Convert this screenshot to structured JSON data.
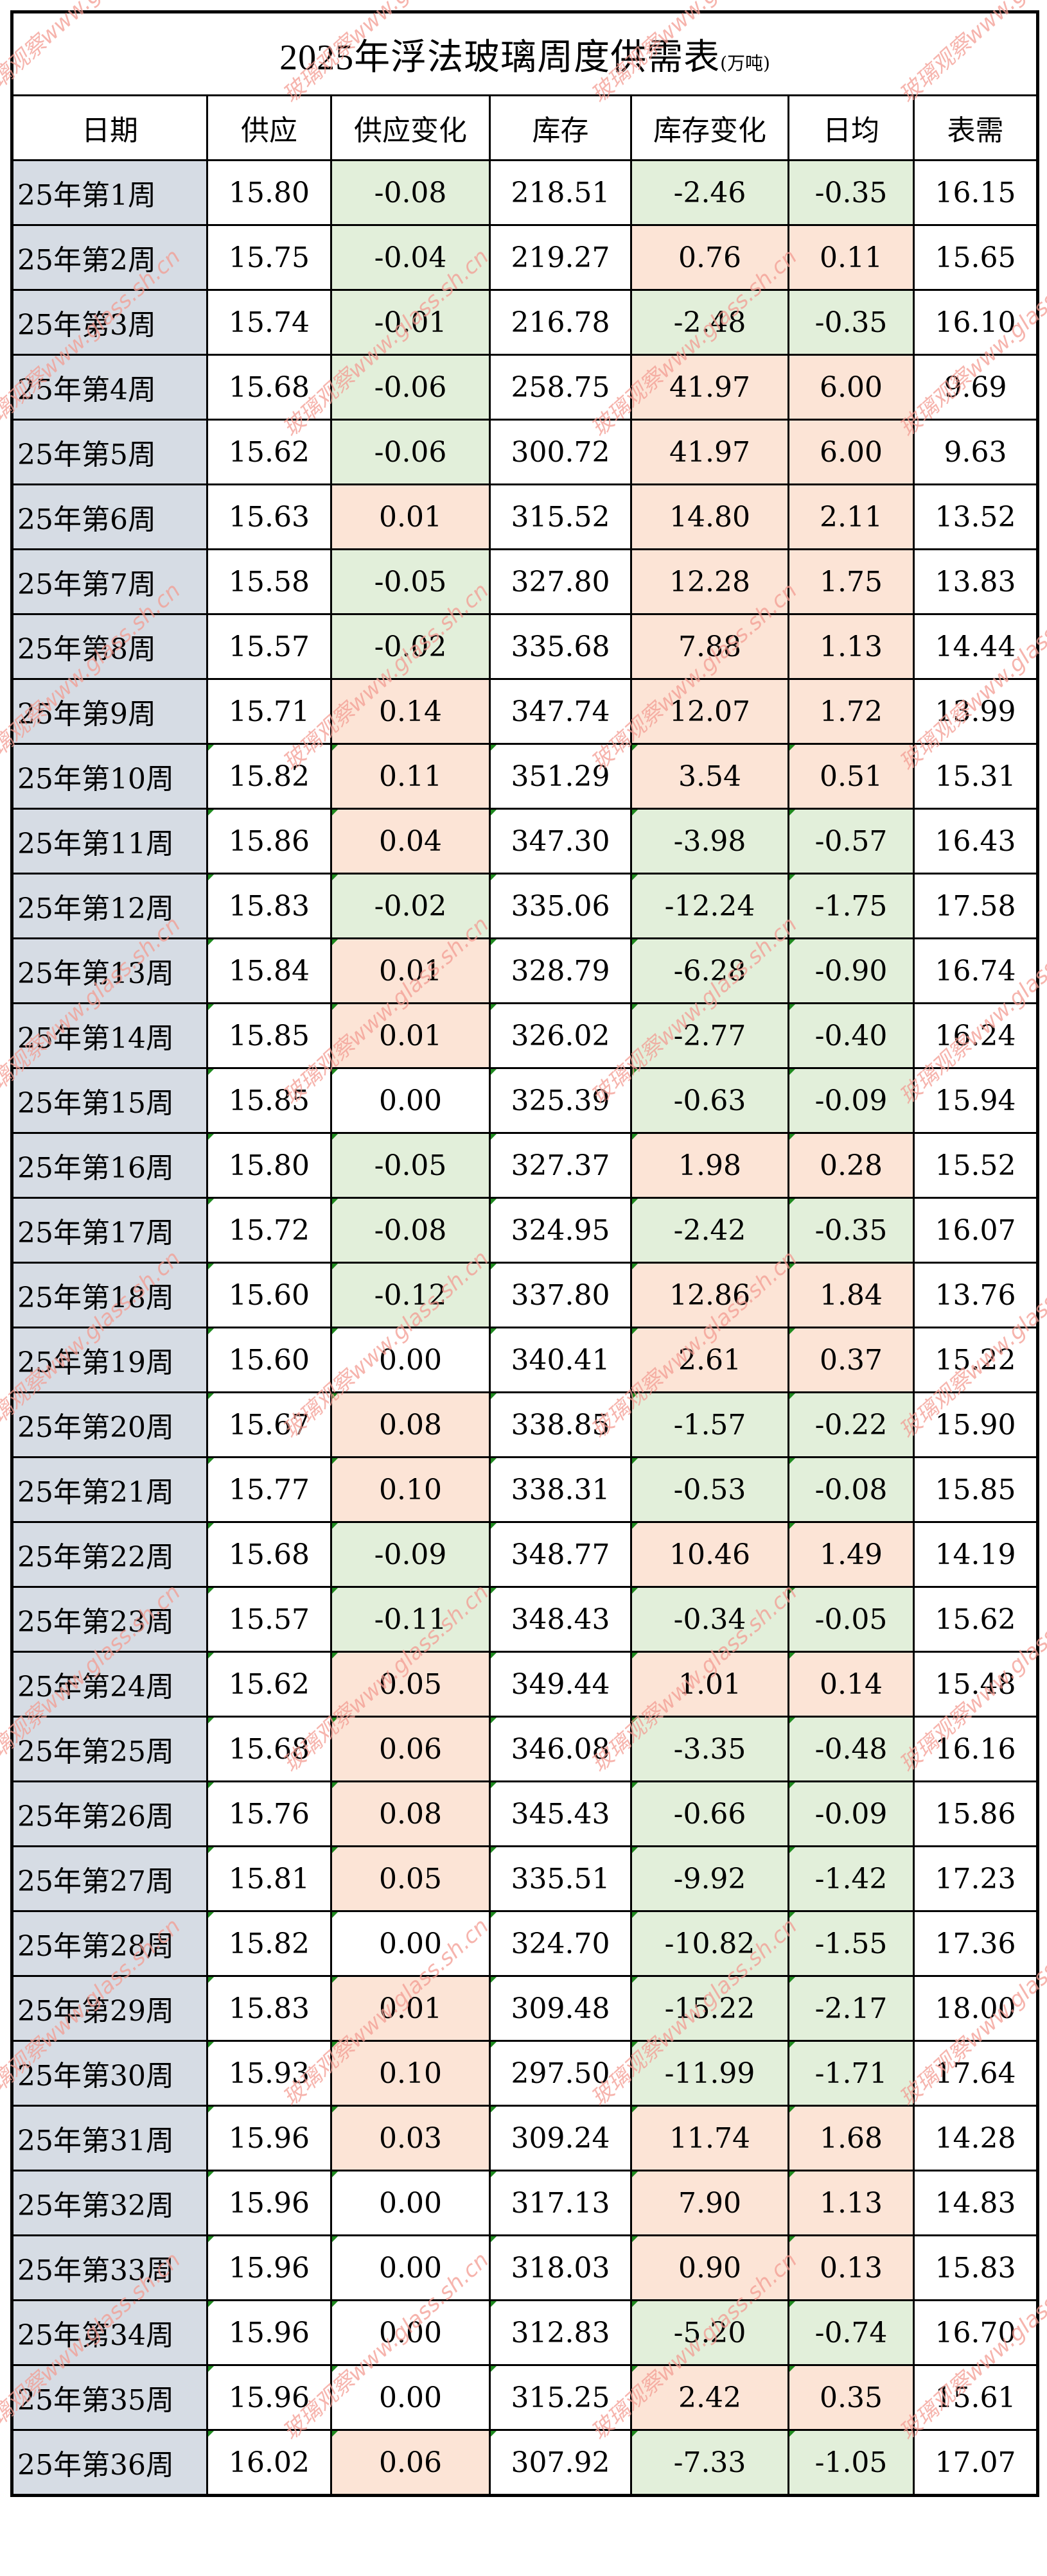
{
  "title": {
    "main": "2025年浮法玻璃周度供需表",
    "unit": "(万吨)"
  },
  "columns": [
    "日期",
    "供应",
    "供应变化",
    "库存",
    "库存变化",
    "日均",
    "表需"
  ],
  "colors": {
    "date_bg": "#d6dce4",
    "increase_bg": "#fce4d6",
    "decrease_bg": "#e2efda",
    "neutral_bg": "#ffffff",
    "text_flag": "#1f8a1f",
    "watermark": "#f39c92"
  },
  "watermark_text": "玻璃观察www.glass.sh.cn",
  "rows": [
    {
      "date": "25年第1周",
      "supply": "15.80",
      "supply_change": "-0.08",
      "inventory": "218.51",
      "inventory_change": "-2.46",
      "daily_avg": "-0.35",
      "apparent_demand": "16.15"
    },
    {
      "date": "25年第2周",
      "supply": "15.75",
      "supply_change": "-0.04",
      "inventory": "219.27",
      "inventory_change": "0.76",
      "daily_avg": "0.11",
      "apparent_demand": "15.65"
    },
    {
      "date": "25年第3周",
      "supply": "15.74",
      "supply_change": "-0.01",
      "inventory": "216.78",
      "inventory_change": "-2.48",
      "daily_avg": "-0.35",
      "apparent_demand": "16.10"
    },
    {
      "date": "25年第4周",
      "supply": "15.68",
      "supply_change": "-0.06",
      "inventory": "258.75",
      "inventory_change": "41.97",
      "daily_avg": "6.00",
      "apparent_demand": "9.69"
    },
    {
      "date": "25年第5周",
      "supply": "15.62",
      "supply_change": "-0.06",
      "inventory": "300.72",
      "inventory_change": "41.97",
      "daily_avg": "6.00",
      "apparent_demand": "9.63"
    },
    {
      "date": "25年第6周",
      "supply": "15.63",
      "supply_change": "0.01",
      "inventory": "315.52",
      "inventory_change": "14.80",
      "daily_avg": "2.11",
      "apparent_demand": "13.52"
    },
    {
      "date": "25年第7周",
      "supply": "15.58",
      "supply_change": "-0.05",
      "inventory": "327.80",
      "inventory_change": "12.28",
      "daily_avg": "1.75",
      "apparent_demand": "13.83"
    },
    {
      "date": "25年第8周",
      "supply": "15.57",
      "supply_change": "-0.02",
      "inventory": "335.68",
      "inventory_change": "7.88",
      "daily_avg": "1.13",
      "apparent_demand": "14.44"
    },
    {
      "date": "25年第9周",
      "supply": "15.71",
      "supply_change": "0.14",
      "inventory": "347.74",
      "inventory_change": "12.07",
      "daily_avg": "1.72",
      "apparent_demand": "13.99"
    },
    {
      "date": "25年第10周",
      "supply": "15.82",
      "supply_change": "0.11",
      "inventory": "351.29",
      "inventory_change": "3.54",
      "daily_avg": "0.51",
      "apparent_demand": "15.31"
    },
    {
      "date": "25年第11周",
      "supply": "15.86",
      "supply_change": "0.04",
      "inventory": "347.30",
      "inventory_change": "-3.98",
      "daily_avg": "-0.57",
      "apparent_demand": "16.43"
    },
    {
      "date": "25年第12周",
      "supply": "15.83",
      "supply_change": "-0.02",
      "inventory": "335.06",
      "inventory_change": "-12.24",
      "daily_avg": "-1.75",
      "apparent_demand": "17.58"
    },
    {
      "date": "25年第13周",
      "supply": "15.84",
      "supply_change": "0.01",
      "inventory": "328.79",
      "inventory_change": "-6.28",
      "daily_avg": "-0.90",
      "apparent_demand": "16.74"
    },
    {
      "date": "25年第14周",
      "supply": "15.85",
      "supply_change": "0.01",
      "inventory": "326.02",
      "inventory_change": "-2.77",
      "daily_avg": "-0.40",
      "apparent_demand": "16.24"
    },
    {
      "date": "25年第15周",
      "supply": "15.85",
      "supply_change": "0.00",
      "inventory": "325.39",
      "inventory_change": "-0.63",
      "daily_avg": "-0.09",
      "apparent_demand": "15.94"
    },
    {
      "date": "25年第16周",
      "supply": "15.80",
      "supply_change": "-0.05",
      "inventory": "327.37",
      "inventory_change": "1.98",
      "daily_avg": "0.28",
      "apparent_demand": "15.52"
    },
    {
      "date": "25年第17周",
      "supply": "15.72",
      "supply_change": "-0.08",
      "inventory": "324.95",
      "inventory_change": "-2.42",
      "daily_avg": "-0.35",
      "apparent_demand": "16.07"
    },
    {
      "date": "25年第18周",
      "supply": "15.60",
      "supply_change": "-0.12",
      "inventory": "337.80",
      "inventory_change": "12.86",
      "daily_avg": "1.84",
      "apparent_demand": "13.76"
    },
    {
      "date": "25年第19周",
      "supply": "15.60",
      "supply_change": "0.00",
      "inventory": "340.41",
      "inventory_change": "2.61",
      "daily_avg": "0.37",
      "apparent_demand": "15.22"
    },
    {
      "date": "25年第20周",
      "supply": "15.67",
      "supply_change": "0.08",
      "inventory": "338.85",
      "inventory_change": "-1.57",
      "daily_avg": "-0.22",
      "apparent_demand": "15.90"
    },
    {
      "date": "25年第21周",
      "supply": "15.77",
      "supply_change": "0.10",
      "inventory": "338.31",
      "inventory_change": "-0.53",
      "daily_avg": "-0.08",
      "apparent_demand": "15.85"
    },
    {
      "date": "25年第22周",
      "supply": "15.68",
      "supply_change": "-0.09",
      "inventory": "348.77",
      "inventory_change": "10.46",
      "daily_avg": "1.49",
      "apparent_demand": "14.19"
    },
    {
      "date": "25年第23周",
      "supply": "15.57",
      "supply_change": "-0.11",
      "inventory": "348.43",
      "inventory_change": "-0.34",
      "daily_avg": "-0.05",
      "apparent_demand": "15.62"
    },
    {
      "date": "25年第24周",
      "supply": "15.62",
      "supply_change": "0.05",
      "inventory": "349.44",
      "inventory_change": "1.01",
      "daily_avg": "0.14",
      "apparent_demand": "15.48"
    },
    {
      "date": "25年第25周",
      "supply": "15.68",
      "supply_change": "0.06",
      "inventory": "346.08",
      "inventory_change": "-3.35",
      "daily_avg": "-0.48",
      "apparent_demand": "16.16"
    },
    {
      "date": "25年第26周",
      "supply": "15.76",
      "supply_change": "0.08",
      "inventory": "345.43",
      "inventory_change": "-0.66",
      "daily_avg": "-0.09",
      "apparent_demand": "15.86"
    },
    {
      "date": "25年第27周",
      "supply": "15.81",
      "supply_change": "0.05",
      "inventory": "335.51",
      "inventory_change": "-9.92",
      "daily_avg": "-1.42",
      "apparent_demand": "17.23"
    },
    {
      "date": "25年第28周",
      "supply": "15.82",
      "supply_change": "0.00",
      "inventory": "324.70",
      "inventory_change": "-10.82",
      "daily_avg": "-1.55",
      "apparent_demand": "17.36"
    },
    {
      "date": "25年第29周",
      "supply": "15.83",
      "supply_change": "0.01",
      "inventory": "309.48",
      "inventory_change": "-15.22",
      "daily_avg": "-2.17",
      "apparent_demand": "18.00"
    },
    {
      "date": "25年第30周",
      "supply": "15.93",
      "supply_change": "0.10",
      "inventory": "297.50",
      "inventory_change": "-11.99",
      "daily_avg": "-1.71",
      "apparent_demand": "17.64"
    },
    {
      "date": "25年第31周",
      "supply": "15.96",
      "supply_change": "0.03",
      "inventory": "309.24",
      "inventory_change": "11.74",
      "daily_avg": "1.68",
      "apparent_demand": "14.28"
    },
    {
      "date": "25年第32周",
      "supply": "15.96",
      "supply_change": "0.00",
      "inventory": "317.13",
      "inventory_change": "7.90",
      "daily_avg": "1.13",
      "apparent_demand": "14.83"
    },
    {
      "date": "25年第33周",
      "supply": "15.96",
      "supply_change": "0.00",
      "inventory": "318.03",
      "inventory_change": "0.90",
      "daily_avg": "0.13",
      "apparent_demand": "15.83"
    },
    {
      "date": "25年第34周",
      "supply": "15.96",
      "supply_change": "0.00",
      "inventory": "312.83",
      "inventory_change": "-5.20",
      "daily_avg": "-0.74",
      "apparent_demand": "16.70"
    },
    {
      "date": "25年第35周",
      "supply": "15.96",
      "supply_change": "0.00",
      "inventory": "315.25",
      "inventory_change": "2.42",
      "daily_avg": "0.35",
      "apparent_demand": "15.61"
    },
    {
      "date": "25年第36周",
      "supply": "16.02",
      "supply_change": "0.06",
      "inventory": "307.92",
      "inventory_change": "-7.33",
      "daily_avg": "-1.05",
      "apparent_demand": "17.07"
    }
  ]
}
